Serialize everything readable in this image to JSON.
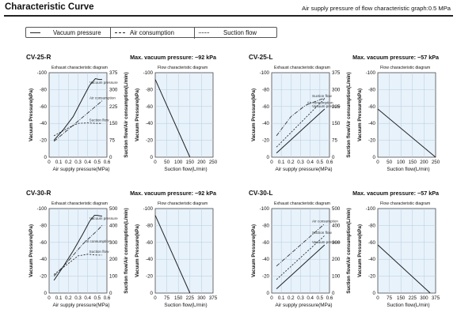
{
  "header": {
    "title": "Characteristic Curve",
    "subtitle": "Air supply pressure of flow characteristic graph:0.5 MPa"
  },
  "legend": {
    "items": [
      {
        "label": "Vacuum pressure",
        "style": "solid"
      },
      {
        "label": "Air consumption",
        "style": "dashdot"
      },
      {
        "label": "Suction flow",
        "style": "dashed"
      }
    ]
  },
  "colors": {
    "plot_bg": "#e7f2fb",
    "grid": "#b9cbdc",
    "line": "#222222"
  },
  "chart_data": [
    {
      "model": "CV-25-R",
      "max_vacuum_label": "Max. vacuum pressure: −92 kPa",
      "exhaust": {
        "type": "line",
        "title": "Exhaust characteristic diagram",
        "xlabel": "Air supply pressure(MPa)",
        "ylabel_left": "Vacuum Pressure(kPa)",
        "ylabel_right": "Suction flow/Air consumption(L/min)",
        "x_ticks": [
          "0",
          "0.1",
          "0.2",
          "0.3",
          "0.4",
          "0.5",
          "0.6"
        ],
        "y_left_ticks": [
          "-100",
          "-80",
          "-60",
          "-40",
          "-20",
          "0"
        ],
        "y_right_ticks": [
          "375",
          "300",
          "225",
          "150",
          "75",
          "0"
        ],
        "xlim": [
          0,
          0.6
        ],
        "ylim_left": [
          0,
          -100
        ],
        "ylim_right": [
          0,
          375
        ],
        "series": [
          {
            "name": "Vacuum pressure",
            "label": "Vacuum pressure",
            "axis": "left",
            "style": "solid",
            "x": [
              0.05,
              0.15,
              0.25,
              0.35,
              0.42,
              0.48,
              0.52,
              0.55
            ],
            "y": [
              -20,
              -33,
              -48,
              -70,
              -85,
              -93,
              -92,
              -92
            ]
          },
          {
            "name": "Air consumption",
            "label": "Air consumption",
            "axis": "right",
            "style": "dashdot",
            "x": [
              0.05,
              0.55
            ],
            "y": [
              70,
              250
            ]
          },
          {
            "name": "Suction flow",
            "label": "Suction flow",
            "axis": "right",
            "style": "dashed",
            "x": [
              0.05,
              0.2,
              0.3,
              0.4,
              0.5,
              0.55
            ],
            "y": [
              95,
              130,
              150,
              152,
              150,
              150
            ]
          }
        ]
      },
      "flow": {
        "type": "line",
        "title": "Flow characteristic diagram",
        "xlabel": "Suction flow(L/min)",
        "ylabel": "Vacuum Pressure(kPa)",
        "x_ticks": [
          "0",
          "50",
          "100",
          "150",
          "200",
          "250"
        ],
        "y_ticks": [
          "-100",
          "-80",
          "-60",
          "-40",
          "-20",
          "0"
        ],
        "xlim": [
          0,
          250
        ],
        "ylim": [
          0,
          -100
        ],
        "series": [
          {
            "name": "Vacuum pressure",
            "x": [
              0,
              150
            ],
            "y": [
              -92,
              0
            ]
          }
        ]
      }
    },
    {
      "model": "CV-25-L",
      "max_vacuum_label": "Max. vacuum pressure: −57 kPa",
      "exhaust": {
        "type": "line",
        "title": "Exhaust characteristic diagram",
        "xlabel": "Air supply pressure(MPa)",
        "ylabel_left": "Vacuum Pressure(kPa)",
        "ylabel_right": "Suction flow/Air consumption(L/min)",
        "x_ticks": [
          "0",
          "0.1",
          "0.2",
          "0.3",
          "0.4",
          "0.5",
          "0.6"
        ],
        "y_left_ticks": [
          "-100",
          "-80",
          "-60",
          "-40",
          "-20",
          "0"
        ],
        "y_right_ticks": [
          "375",
          "300",
          "225",
          "150",
          "75",
          "0"
        ],
        "xlim": [
          0,
          0.6
        ],
        "ylim_left": [
          0,
          -100
        ],
        "ylim_right": [
          0,
          375
        ],
        "series": [
          {
            "name": "Vacuum pressure",
            "label": "Vacuum pressure",
            "axis": "left",
            "style": "solid",
            "x": [
              0.05,
              0.55
            ],
            "y": [
              -5,
              -57
            ]
          },
          {
            "name": "Air consumption",
            "label": "Air consumption",
            "axis": "right",
            "style": "dashdot",
            "x": [
              0.05,
              0.2,
              0.35,
              0.5,
              0.55
            ],
            "y": [
              95,
              180,
              230,
              255,
              262
            ]
          },
          {
            "name": "Suction flow",
            "label": "Suction flow",
            "axis": "right",
            "style": "dashed",
            "x": [
              0.05,
              0.55
            ],
            "y": [
              45,
              260
            ]
          }
        ]
      },
      "flow": {
        "type": "line",
        "title": "Flow characteristic diagram",
        "xlabel": "Suction flow(L/min)",
        "ylabel": "Vacuum Pressure(kPa)",
        "x_ticks": [
          "0",
          "50",
          "100",
          "150",
          "200",
          "250"
        ],
        "y_ticks": [
          "-100",
          "-80",
          "-60",
          "-40",
          "-20",
          "0"
        ],
        "xlim": [
          0,
          250
        ],
        "ylim": [
          0,
          -100
        ],
        "series": [
          {
            "name": "Vacuum pressure",
            "x": [
              0,
              250
            ],
            "y": [
              -57,
              0
            ]
          }
        ]
      }
    },
    {
      "model": "CV-30-R",
      "max_vacuum_label": "Max. vacuum pressure: −92 kPa",
      "exhaust": {
        "type": "line",
        "title": "Exhaust characteristic diagram",
        "xlabel": "Air supply pressure(MPa)",
        "ylabel_left": "Vacuum Pressure(kPa)",
        "ylabel_right": "Suction flow/Air consumption(L/min)",
        "x_ticks": [
          "0",
          "0.1",
          "0.2",
          "0.3",
          "0.4",
          "0.5",
          "0.6"
        ],
        "y_left_ticks": [
          "-100",
          "-80",
          "-60",
          "-40",
          "-20",
          "0"
        ],
        "y_right_ticks": [
          "500",
          "400",
          "300",
          "200",
          "100",
          "0"
        ],
        "xlim": [
          0,
          0.6
        ],
        "ylim_left": [
          0,
          -100
        ],
        "ylim_right": [
          0,
          500
        ],
        "series": [
          {
            "name": "Vacuum pressure",
            "label": "Vacuum pressure",
            "axis": "left",
            "style": "solid",
            "x": [
              0.05,
              0.15,
              0.25,
              0.35,
              0.42,
              0.47,
              0.5,
              0.55
            ],
            "y": [
              -15,
              -32,
              -50,
              -70,
              -85,
              -92,
              -92,
              -91
            ]
          },
          {
            "name": "Air consumption",
            "label": "Air consumption",
            "axis": "right",
            "style": "dashdot",
            "x": [
              0.05,
              0.2,
              0.35,
              0.5,
              0.55
            ],
            "y": [
              100,
              190,
              290,
              370,
              400
            ]
          },
          {
            "name": "Suction flow",
            "label": "Suction flow",
            "axis": "right",
            "style": "dashed",
            "x": [
              0.05,
              0.2,
              0.3,
              0.4,
              0.5,
              0.55
            ],
            "y": [
              110,
              175,
              220,
              230,
              225,
              225
            ]
          }
        ]
      },
      "flow": {
        "type": "line",
        "title": "Flow characteristic diagram",
        "xlabel": "Suction flow(L/min)",
        "ylabel": "Vacuum Pressure(kPa)",
        "x_ticks": [
          "0",
          "75",
          "150",
          "225",
          "300",
          "375"
        ],
        "y_ticks": [
          "-100",
          "-80",
          "-60",
          "-40",
          "-20",
          "0"
        ],
        "xlim": [
          0,
          375
        ],
        "ylim": [
          0,
          -100
        ],
        "series": [
          {
            "name": "Vacuum pressure",
            "x": [
              0,
              225
            ],
            "y": [
              -92,
              0
            ]
          }
        ]
      }
    },
    {
      "model": "CV-30-L",
      "max_vacuum_label": "Max. vacuum pressure: −57 kPa",
      "exhaust": {
        "type": "line",
        "title": "Exhaust characteristic diagram",
        "xlabel": "Air supply pressure(MPa)",
        "ylabel_left": "Vacuum Pressure(kPa)",
        "ylabel_right": "Suction flow/Air consumption(L/min)",
        "x_ticks": [
          "0",
          "0.1",
          "0.2",
          "0.3",
          "0.4",
          "0.5",
          "0.6"
        ],
        "y_left_ticks": [
          "-100",
          "-80",
          "-60",
          "-40",
          "-20",
          "0"
        ],
        "y_right_ticks": [
          "500",
          "400",
          "300",
          "200",
          "100",
          "0"
        ],
        "xlim": [
          0,
          0.6
        ],
        "ylim_left": [
          0,
          -100
        ],
        "ylim_right": [
          0,
          500
        ],
        "series": [
          {
            "name": "Vacuum pressure",
            "label": "Vacuum pressure",
            "axis": "left",
            "style": "solid",
            "x": [
              0.05,
              0.55
            ],
            "y": [
              -5,
              -57
            ]
          },
          {
            "name": "Air consumption",
            "label": "Air consumption",
            "axis": "right",
            "style": "dashdot",
            "x": [
              0.05,
              0.55
            ],
            "y": [
              160,
              410
            ]
          },
          {
            "name": "Suction flow",
            "label": "Suction flow",
            "axis": "right",
            "style": "dashed",
            "x": [
              0.05,
              0.55
            ],
            "y": [
              80,
              340
            ]
          }
        ]
      },
      "flow": {
        "type": "line",
        "title": "Flow characteristic diagram",
        "xlabel": "Suction flow(L/min)",
        "ylabel": "Vacuum Pressure(kPa)",
        "x_ticks": [
          "0",
          "75",
          "150",
          "225",
          "300",
          "375"
        ],
        "y_ticks": [
          "-100",
          "-80",
          "-60",
          "-40",
          "-20",
          "0"
        ],
        "xlim": [
          0,
          375
        ],
        "ylim": [
          0,
          -100
        ],
        "series": [
          {
            "name": "Vacuum pressure",
            "x": [
              0,
              340
            ],
            "y": [
              -57,
              0
            ]
          }
        ]
      }
    }
  ]
}
